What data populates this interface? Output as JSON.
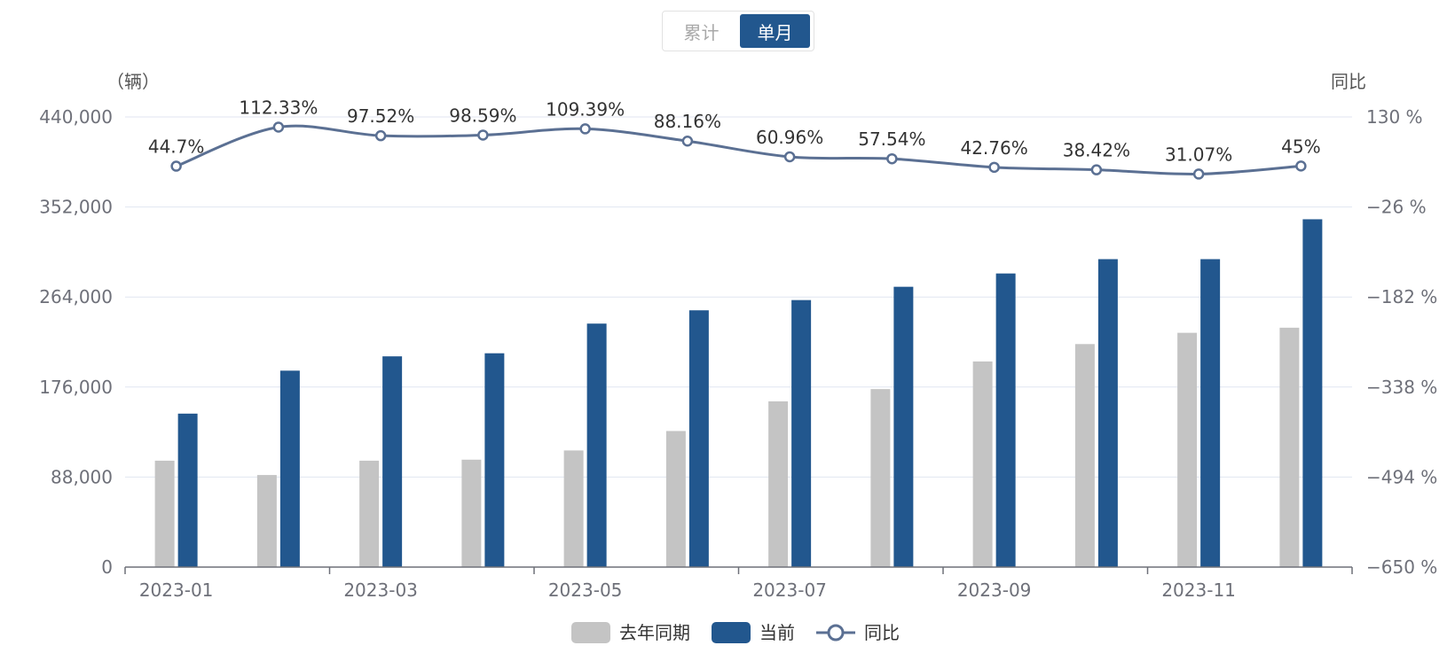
{
  "toggle": {
    "options": [
      {
        "label": "累计",
        "active": false
      },
      {
        "label": "单月",
        "active": true
      }
    ]
  },
  "colors": {
    "last_year": "#c4c4c4",
    "current": "#22578e",
    "yoy_line": "#5b7093",
    "grid": "#e0e6f1"
  },
  "chart_data": {
    "type": "bar",
    "left_unit": "（辆）",
    "right_unit": "同比",
    "categories": [
      "2023-01",
      "2023-02",
      "2023-03",
      "2023-04",
      "2023-05",
      "2023-06",
      "2023-07",
      "2023-08",
      "2023-09",
      "2023-10",
      "2023-11",
      "2023-12"
    ],
    "x_tick_labels": [
      "2023-01",
      "2023-03",
      "2023-05",
      "2023-07",
      "2023-09",
      "2023-11"
    ],
    "y_left": {
      "min": 0,
      "max": 440000,
      "ticks": [
        "0",
        "88,000",
        "176,000",
        "264,000",
        "352,000",
        "440,000"
      ]
    },
    "y_right": {
      "min": -650,
      "max": 130,
      "ticks": [
        "−650 %",
        "−494 %",
        "−338 %",
        "−182 %",
        "−26 %",
        "130 %"
      ]
    },
    "series": [
      {
        "name": "去年同期",
        "type": "bar",
        "values": [
          104000,
          90000,
          104000,
          105000,
          114000,
          133000,
          162000,
          174000,
          201000,
          218000,
          229000,
          234000
        ]
      },
      {
        "name": "当前",
        "type": "bar",
        "values": [
          150000,
          192000,
          206000,
          209000,
          238000,
          251000,
          261000,
          274000,
          287000,
          301000,
          301000,
          340000
        ]
      },
      {
        "name": "同比",
        "type": "line",
        "axis": "right",
        "values": [
          44.7,
          112.33,
          97.52,
          98.59,
          109.39,
          88.16,
          60.96,
          57.54,
          42.76,
          38.42,
          31.07,
          45
        ],
        "labels": [
          "44.7%",
          "112.33%",
          "97.52%",
          "98.59%",
          "109.39%",
          "88.16%",
          "60.96%",
          "57.54%",
          "42.76%",
          "38.42%",
          "31.07%",
          "45%"
        ]
      }
    ],
    "legend": [
      "去年同期",
      "当前",
      "同比"
    ],
    "legend_position": "bottom-center",
    "grid": true
  }
}
